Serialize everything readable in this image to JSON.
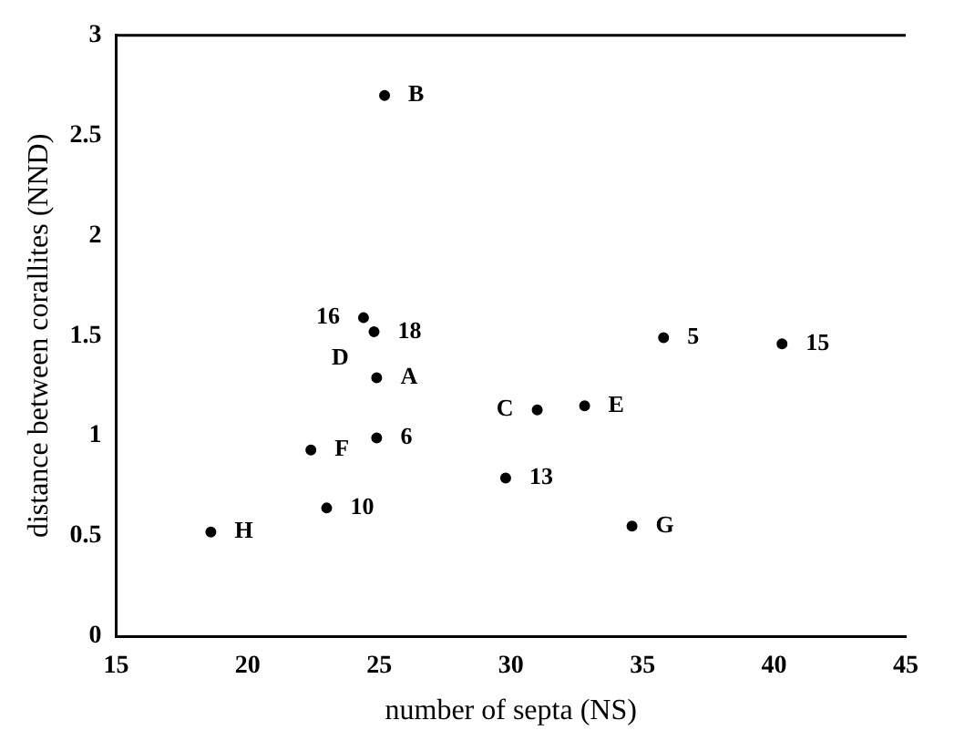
{
  "chart_data": {
    "type": "scatter",
    "xlabel": "number of septa (NS)",
    "ylabel": "distance between corallites (NND)",
    "x": [
      25.2,
      24.4,
      24.8,
      24.9,
      22.4,
      24.9,
      23.0,
      18.6,
      31.0,
      32.8,
      29.8,
      34.6,
      35.8,
      40.3
    ],
    "series": [
      {
        "color": "#000000",
        "values": [
          2.7,
          1.59,
          1.52,
          1.29,
          0.93,
          0.99,
          0.64,
          0.52,
          1.13,
          1.15,
          0.79,
          0.55,
          1.49,
          1.46
        ]
      }
    ],
    "xlim": [
      15,
      45
    ],
    "xticks": [
      15,
      20,
      25,
      30,
      35,
      40,
      45
    ],
    "ylim": [
      0,
      3
    ],
    "yticks": [
      0,
      0.5,
      1,
      1.5,
      2,
      2.5,
      3
    ],
    "grid": false,
    "legend": false,
    "marker": "circle",
    "annotations": [
      {
        "text": "B",
        "x": 25.2,
        "y": 2.7
      },
      {
        "text": "16",
        "x": 24.4,
        "y": 1.59
      },
      {
        "text": "18",
        "x": 24.8,
        "y": 1.52
      },
      {
        "text": "D",
        "x": 24.8,
        "y": 1.52
      },
      {
        "text": "A",
        "x": 24.9,
        "y": 1.29
      },
      {
        "text": "F",
        "x": 22.4,
        "y": 0.93
      },
      {
        "text": "6",
        "x": 24.9,
        "y": 0.99
      },
      {
        "text": "10",
        "x": 23.0,
        "y": 0.64
      },
      {
        "text": "H",
        "x": 18.6,
        "y": 0.52
      },
      {
        "text": "C",
        "x": 31.0,
        "y": 1.13
      },
      {
        "text": "E",
        "x": 32.8,
        "y": 1.15
      },
      {
        "text": "13",
        "x": 29.8,
        "y": 0.79
      },
      {
        "text": "G",
        "x": 34.6,
        "y": 0.55
      },
      {
        "text": "5",
        "x": 35.8,
        "y": 1.49
      },
      {
        "text": "15",
        "x": 40.3,
        "y": 1.46
      }
    ]
  }
}
